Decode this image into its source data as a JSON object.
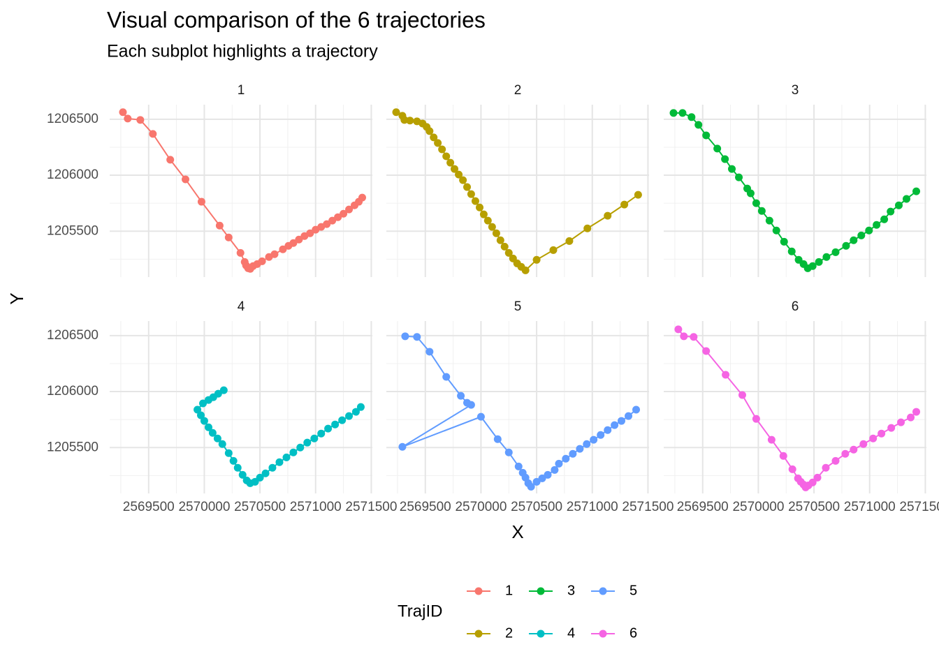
{
  "chart_data": {
    "type": "line",
    "title": "Visual comparison of the 6 trajectories",
    "subtitle": "Each subplot highlights a trajectory",
    "x_label": "X",
    "y_label": "Y",
    "legend_title": "TrajID",
    "grid": true,
    "xlim": [
      2569150,
      2571510
    ],
    "ylim": [
      1205090,
      1206630
    ],
    "xticks": [
      2569500,
      2570000,
      2570500,
      2571000,
      2571500
    ],
    "yticks": [
      1205500,
      1206000,
      1206500
    ],
    "facets": [
      {
        "title": "1",
        "series": [
          {
            "name": "1",
            "color": "#F8766D",
            "x": [
              2569269,
              2569312,
              2569425,
              2569538,
              2569694,
              2569831,
              2569975,
              2570138,
              2570219,
              2570325,
              2570363,
              2570375,
              2570394,
              2570413,
              2570438,
              2570475,
              2570519,
              2570581,
              2570631,
              2570706,
              2570756,
              2570800,
              2570850,
              2570900,
              2570950,
              2571000,
              2571050,
              2571100,
              2571150,
              2571200,
              2571250,
              2571300,
              2571350,
              2571388,
              2571419
            ],
            "values": [
              1206563,
              1206506,
              1206494,
              1206369,
              1206138,
              1205963,
              1205763,
              1205550,
              1205444,
              1205306,
              1205225,
              1205194,
              1205169,
              1205163,
              1205188,
              1205206,
              1205231,
              1205269,
              1205294,
              1205338,
              1205369,
              1205394,
              1205425,
              1205456,
              1205481,
              1205513,
              1205538,
              1205563,
              1205594,
              1205625,
              1205656,
              1205694,
              1205731,
              1205763,
              1205800
            ]
          }
        ]
      },
      {
        "title": "2",
        "series": [
          {
            "name": "2",
            "color": "#B79F00",
            "x": [
              2569238,
              2569294,
              2569312,
              2569362,
              2569425,
              2569475,
              2569512,
              2569538,
              2569575,
              2569612,
              2569650,
              2569688,
              2569725,
              2569762,
              2569800,
              2569838,
              2569875,
              2569912,
              2569950,
              2569988,
              2570025,
              2570062,
              2570100,
              2570138,
              2570175,
              2570212,
              2570250,
              2570288,
              2570325,
              2570362,
              2570400,
              2570500,
              2570650,
              2570794,
              2570956,
              2571138,
              2571288,
              2571412
            ],
            "values": [
              1206563,
              1206531,
              1206494,
              1206488,
              1206481,
              1206462,
              1206431,
              1206394,
              1206338,
              1206288,
              1206231,
              1206169,
              1206112,
              1206056,
              1206006,
              1205956,
              1205894,
              1205831,
              1205769,
              1205712,
              1205650,
              1205594,
              1205538,
              1205481,
              1205419,
              1205362,
              1205306,
              1205256,
              1205212,
              1205181,
              1205150,
              1205244,
              1205331,
              1205412,
              1205525,
              1205638,
              1205738,
              1205825
            ]
          }
        ]
      },
      {
        "title": "3",
        "series": [
          {
            "name": "3",
            "color": "#00BA38",
            "x": [
              2569238,
              2569319,
              2569400,
              2569462,
              2569531,
              2569631,
              2569700,
              2569762,
              2569825,
              2569900,
              2569931,
              2569981,
              2570031,
              2570100,
              2570162,
              2570231,
              2570300,
              2570362,
              2570406,
              2570444,
              2570488,
              2570544,
              2570612,
              2570694,
              2570788,
              2570856,
              2570925,
              2570994,
              2571062,
              2571131,
              2571188,
              2571262,
              2571331,
              2571419
            ],
            "values": [
              1206556,
              1206556,
              1206519,
              1206450,
              1206356,
              1206238,
              1206144,
              1206056,
              1205981,
              1205881,
              1205838,
              1205750,
              1205681,
              1205594,
              1205506,
              1205406,
              1205319,
              1205244,
              1205206,
              1205169,
              1205188,
              1205225,
              1205269,
              1205312,
              1205369,
              1205419,
              1205462,
              1205506,
              1205556,
              1205606,
              1205675,
              1205731,
              1205788,
              1205856
            ]
          }
        ]
      },
      {
        "title": "4",
        "series": [
          {
            "name": "4",
            "color": "#00BFC4",
            "x": [
              2570175,
              2570125,
              2570081,
              2570038,
              2569988,
              2569938,
              2569969,
              2570000,
              2570038,
              2570075,
              2570119,
              2570162,
              2570219,
              2570262,
              2570300,
              2570344,
              2570381,
              2570412,
              2570456,
              2570500,
              2570550,
              2570612,
              2570675,
              2570738,
              2570800,
              2570862,
              2570925,
              2570988,
              2571050,
              2571112,
              2571175,
              2571238,
              2571300,
              2571362,
              2571406
            ],
            "values": [
              1206012,
              1205981,
              1205950,
              1205925,
              1205894,
              1205838,
              1205788,
              1205738,
              1205681,
              1205631,
              1205581,
              1205531,
              1205450,
              1205381,
              1205319,
              1205256,
              1205206,
              1205181,
              1205194,
              1205231,
              1205269,
              1205319,
              1205369,
              1205412,
              1205456,
              1205500,
              1205544,
              1205581,
              1205625,
              1205669,
              1205706,
              1205744,
              1205781,
              1205819,
              1205862
            ]
          }
        ]
      },
      {
        "title": "5",
        "series": [
          {
            "name": "5",
            "color": "#619CFF",
            "x": [
              2569319,
              2569425,
              2569538,
              2569688,
              2569819,
              2569875,
              2569912,
              2569294,
              2570000,
              2570150,
              2570250,
              2570338,
              2570375,
              2570400,
              2570425,
              2570450,
              2570500,
              2570550,
              2570600,
              2570662,
              2570700,
              2570762,
              2570825,
              2570888,
              2570950,
              2571012,
              2571075,
              2571138,
              2571200,
              2571262,
              2571325,
              2571394
            ],
            "values": [
              1206494,
              1206488,
              1206356,
              1206131,
              1205962,
              1205900,
              1205881,
              1205506,
              1205775,
              1205575,
              1205456,
              1205331,
              1205275,
              1205231,
              1205181,
              1205150,
              1205194,
              1205225,
              1205256,
              1205300,
              1205356,
              1205400,
              1205444,
              1205488,
              1205531,
              1205569,
              1205612,
              1205656,
              1205700,
              1205738,
              1205781,
              1205838
            ]
          }
        ]
      },
      {
        "title": "6",
        "series": [
          {
            "name": "6",
            "color": "#F564E3",
            "x": [
              2569281,
              2569331,
              2569419,
              2569531,
              2569706,
              2569856,
              2569981,
              2570119,
              2570225,
              2570306,
              2570356,
              2570381,
              2570406,
              2570425,
              2570450,
              2570488,
              2570531,
              2570606,
              2570694,
              2570781,
              2570856,
              2570944,
              2571031,
              2571106,
              2571194,
              2571281,
              2571369,
              2571419
            ],
            "values": [
              1206556,
              1206494,
              1206488,
              1206362,
              1206150,
              1205969,
              1205756,
              1205569,
              1205425,
              1205306,
              1205225,
              1205194,
              1205169,
              1205144,
              1205162,
              1205188,
              1205231,
              1205319,
              1205381,
              1205444,
              1205481,
              1205531,
              1205581,
              1205625,
              1205675,
              1205725,
              1205769,
              1205819
            ]
          }
        ]
      }
    ]
  }
}
